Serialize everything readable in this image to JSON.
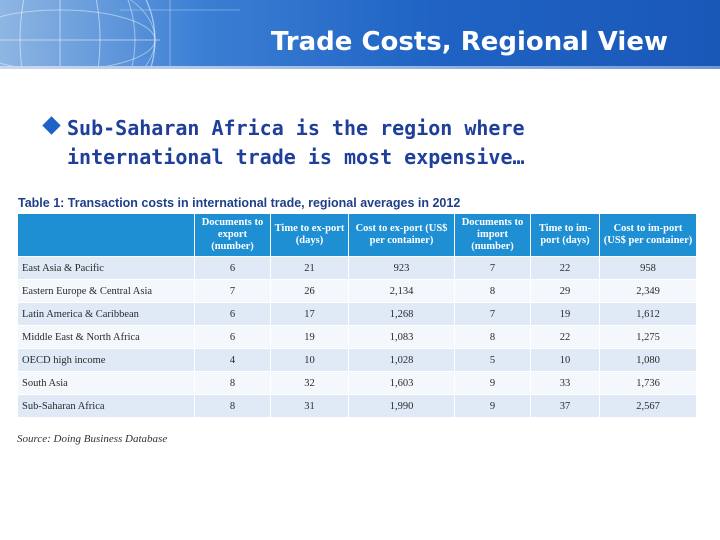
{
  "slide": {
    "title": "Trade Costs, Regional View",
    "bullet": "Sub-Saharan Africa is the region where\ninternational trade is most expensive…"
  },
  "table": {
    "caption": "Table 1: Transaction costs in international trade, regional averages in 2012",
    "headers": [
      "",
      "Documents to export (number)",
      "Time to ex-port (days)",
      "Cost to ex-port (US$ per container)",
      "Documents to import (number)",
      "Time to im-port (days)",
      "Cost to im-port (US$ per container)"
    ],
    "rows": [
      [
        "East Asia & Pacific",
        "6",
        "21",
        "923",
        "7",
        "22",
        "958"
      ],
      [
        "Eastern Europe & Central Asia",
        "7",
        "26",
        "2,134",
        "8",
        "29",
        "2,349"
      ],
      [
        "Latin America & Caribbean",
        "6",
        "17",
        "1,268",
        "7",
        "19",
        "1,612"
      ],
      [
        "Middle East & North Africa",
        "6",
        "19",
        "1,083",
        "8",
        "22",
        "1,275"
      ],
      [
        "OECD high income",
        "4",
        "10",
        "1,028",
        "5",
        "10",
        "1,080"
      ],
      [
        "South Asia",
        "8",
        "32",
        "1,603",
        "9",
        "33",
        "1,736"
      ],
      [
        "Sub-Saharan Africa",
        "8",
        "31",
        "1,990",
        "9",
        "37",
        "2,567"
      ]
    ],
    "source": "Source: Doing Business Database"
  },
  "colors": {
    "header_banner": "#1f63c4",
    "bullet_text": "#1f3f9a",
    "table_header": "#1e8fd3",
    "row_shade": "#dfeaf6"
  }
}
